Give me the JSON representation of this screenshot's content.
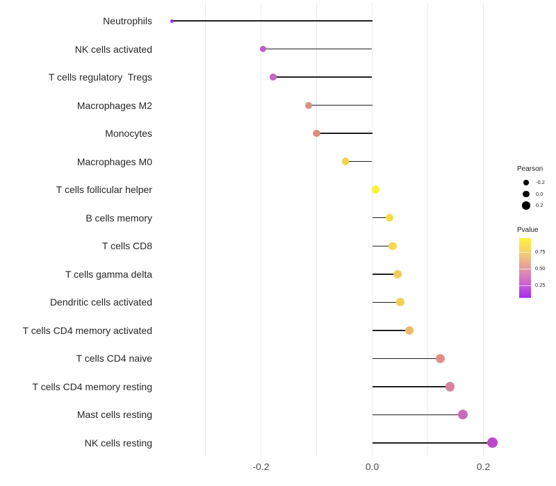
{
  "chart_data": {
    "type": "scatter",
    "subtype": "lollipop",
    "title": "",
    "xlabel": "",
    "ylabel": "",
    "xlim": [
      -0.39,
      0.25
    ],
    "grid": "vertical-only",
    "gridline_values": [
      -0.3,
      -0.2,
      -0.1,
      0.0,
      0.1,
      0.2
    ],
    "x_ticks": [
      {
        "value": -0.2,
        "label": "-0.2"
      },
      {
        "value": 0.0,
        "label": "0.0"
      },
      {
        "value": 0.2,
        "label": "0.2"
      }
    ],
    "baseline_value": 0.0,
    "rows": [
      {
        "label": "Neutrophils",
        "pearson": -0.36,
        "pvalue_est": 0.06,
        "color": "#9d2ae4",
        "size": 5
      },
      {
        "label": "NK cells activated",
        "pearson": -0.196,
        "pvalue_est": 0.28,
        "color": "#c55bca",
        "size": 9
      },
      {
        "label": "T cells regulatory  Tregs",
        "pearson": -0.178,
        "pvalue_est": 0.31,
        "color": "#c765c3",
        "size": 9.5
      },
      {
        "label": "Macrophages M2",
        "pearson": -0.115,
        "pvalue_est": 0.58,
        "color": "#dc8f83",
        "size": 10
      },
      {
        "label": "Monocytes",
        "pearson": -0.1,
        "pvalue_est": 0.6,
        "color": "#dd9177",
        "size": 10.5
      },
      {
        "label": "Macrophages M0",
        "pearson": -0.048,
        "pvalue_est": 0.85,
        "color": "#f0d14e",
        "size": 10.5
      },
      {
        "label": "T cells follicular helper",
        "pearson": 0.006,
        "pvalue_est": 0.98,
        "color": "#f9f138",
        "size": 11.5
      },
      {
        "label": "B cells memory",
        "pearson": 0.031,
        "pvalue_est": 0.92,
        "color": "#f6dc49",
        "size": 11.5
      },
      {
        "label": "T cells CD8",
        "pearson": 0.037,
        "pvalue_est": 0.9,
        "color": "#f4d751",
        "size": 11.5
      },
      {
        "label": "T cells gamma delta",
        "pearson": 0.046,
        "pvalue_est": 0.84,
        "color": "#eeca5f",
        "size": 12
      },
      {
        "label": "Dendritic cells activated",
        "pearson": 0.05,
        "pvalue_est": 0.87,
        "color": "#f1d052",
        "size": 12
      },
      {
        "label": "T cells CD4 memory activated",
        "pearson": 0.067,
        "pvalue_est": 0.79,
        "color": "#edb969",
        "size": 12.5
      },
      {
        "label": "T cells CD4 naive",
        "pearson": 0.123,
        "pvalue_est": 0.58,
        "color": "#e19085",
        "size": 13
      },
      {
        "label": "T cells CD4 memory resting",
        "pearson": 0.14,
        "pvalue_est": 0.46,
        "color": "#d8829e",
        "size": 13.5
      },
      {
        "label": "Mast cells resting",
        "pearson": 0.163,
        "pvalue_est": 0.35,
        "color": "#ca6cb3",
        "size": 14
      },
      {
        "label": "NK cells resting",
        "pearson": 0.216,
        "pvalue_est": 0.24,
        "color": "#bd47ce",
        "size": 15
      }
    ],
    "legend": {
      "size": {
        "title": "Pearson",
        "dot_color": "#000000",
        "entries": [
          {
            "label": "-0.2",
            "diameter": 7.5
          },
          {
            "label": "0.0",
            "diameter": 9.5
          },
          {
            "label": "0.2",
            "diameter": 11.5
          }
        ]
      },
      "color": {
        "title": "Pvalue",
        "gradient_stops": [
          "#fbf53c",
          "#f3ce6e",
          "#e49ba3",
          "#cd64d0",
          "#a32bef"
        ],
        "ticks": [
          {
            "label": "0.75"
          },
          {
            "label": "0.50"
          },
          {
            "label": "0.25"
          }
        ]
      }
    }
  }
}
